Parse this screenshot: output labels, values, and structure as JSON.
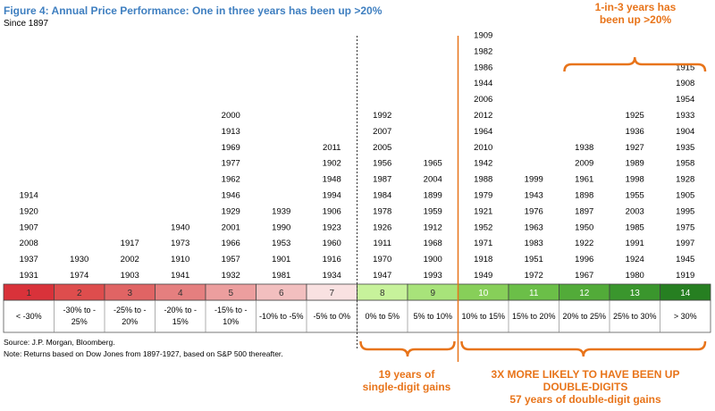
{
  "title": "Figure 4: Annual Price Performance: One in three years has been up >20%",
  "subtitle": "Since 1897",
  "chart_data": {
    "type": "table",
    "columns": [
      {
        "num": "1",
        "range": [
          "< -30%"
        ],
        "color": "#d9323a",
        "years": [
          "1914",
          "1920",
          "1907",
          "2008",
          "1937",
          "1931"
        ]
      },
      {
        "num": "2",
        "range": [
          "-30% to -",
          "25%"
        ],
        "color": "#de4d4d",
        "years": [
          "1930",
          "1974"
        ]
      },
      {
        "num": "3",
        "range": [
          "-25% to -",
          "20%"
        ],
        "color": "#e06464",
        "years": [
          "1917",
          "2002",
          "1903"
        ]
      },
      {
        "num": "4",
        "range": [
          "-20% to -",
          "15%"
        ],
        "color": "#e57f7f",
        "years": [
          "1940",
          "1973",
          "1910",
          "1941"
        ]
      },
      {
        "num": "5",
        "range": [
          "-15% to -",
          "10%"
        ],
        "color": "#ec9e9e",
        "years": [
          "2000",
          "1913",
          "1969",
          "1977",
          "1962",
          "1946",
          "1929",
          "2001",
          "1966",
          "1957",
          "1932"
        ]
      },
      {
        "num": "6",
        "range": [
          "-10% to -5%"
        ],
        "color": "#f2bfbf",
        "years": [
          "1939",
          "1990",
          "1953",
          "1901",
          "1981"
        ]
      },
      {
        "num": "7",
        "range": [
          "-5% to 0%"
        ],
        "color": "#f9e1e1",
        "years": [
          "2011",
          "1902",
          "1948",
          "1994",
          "1906",
          "1923",
          "1960",
          "1916",
          "1934"
        ]
      },
      {
        "num": "8",
        "range": [
          "0% to 5%"
        ],
        "color": "#c7f29b",
        "years": [
          "1992",
          "2007",
          "2005",
          "1956",
          "1987",
          "1984",
          "1978",
          "1926",
          "1911",
          "1970",
          "1947"
        ]
      },
      {
        "num": "9",
        "range": [
          "5% to 10%"
        ],
        "color": "#a8e37a",
        "years": [
          "1965",
          "2004",
          "1899",
          "1959",
          "1912",
          "1968",
          "1900",
          "1993"
        ]
      },
      {
        "num": "10",
        "range": [
          "10% to 15%"
        ],
        "color": "#87cf59",
        "years": [
          "1909",
          "1982",
          "1986",
          "1944",
          "2006",
          "2012",
          "1964",
          "2010",
          "1942",
          "1988",
          "1979",
          "1921",
          "1952",
          "1971",
          "1918",
          "1949"
        ]
      },
      {
        "num": "11",
        "range": [
          "15% to 20%"
        ],
        "color": "#6bbf48",
        "years": [
          "1999",
          "1943",
          "1976",
          "1963",
          "1983",
          "1951",
          "1972"
        ]
      },
      {
        "num": "12",
        "range": [
          "20% to 25%"
        ],
        "color": "#52ab39",
        "years": [
          "1938",
          "2009",
          "1961",
          "1898",
          "1897",
          "1950",
          "1922",
          "1996",
          "1967"
        ]
      },
      {
        "num": "13",
        "range": [
          "25% to 30%"
        ],
        "color": "#3a962d",
        "years": [
          "1925",
          "1936",
          "1927",
          "1989",
          "1998",
          "1955",
          "2003",
          "1985",
          "1991",
          "1924",
          "1980"
        ]
      },
      {
        "num": "14",
        "range": [
          "> 30%"
        ],
        "color": "#267f21",
        "years": [
          "1915",
          "1908",
          "1954",
          "1933",
          "1904",
          "1935",
          "1958",
          "1928",
          "1905",
          "1995",
          "1975",
          "1997",
          "1945",
          "1919"
        ]
      }
    ]
  },
  "footnotes": {
    "source": "Source: J.P. Morgan, Bloomberg.",
    "note": "Note: Returns based on Dow Jones from 1897-1927, based on S&P 500 thereafter."
  },
  "annotations": {
    "top_right": [
      "1-in-3 years has",
      "been up >20%"
    ],
    "single_digit": [
      "19 years of",
      "single-digit gains"
    ],
    "double_digit": [
      "3X MORE LIKELY TO HAVE BEEN UP",
      "DOUBLE-DIGITS",
      "57 years of double-digit gains"
    ]
  },
  "colors": {
    "title": "#3f7fc0",
    "accent": "#e8741a"
  }
}
